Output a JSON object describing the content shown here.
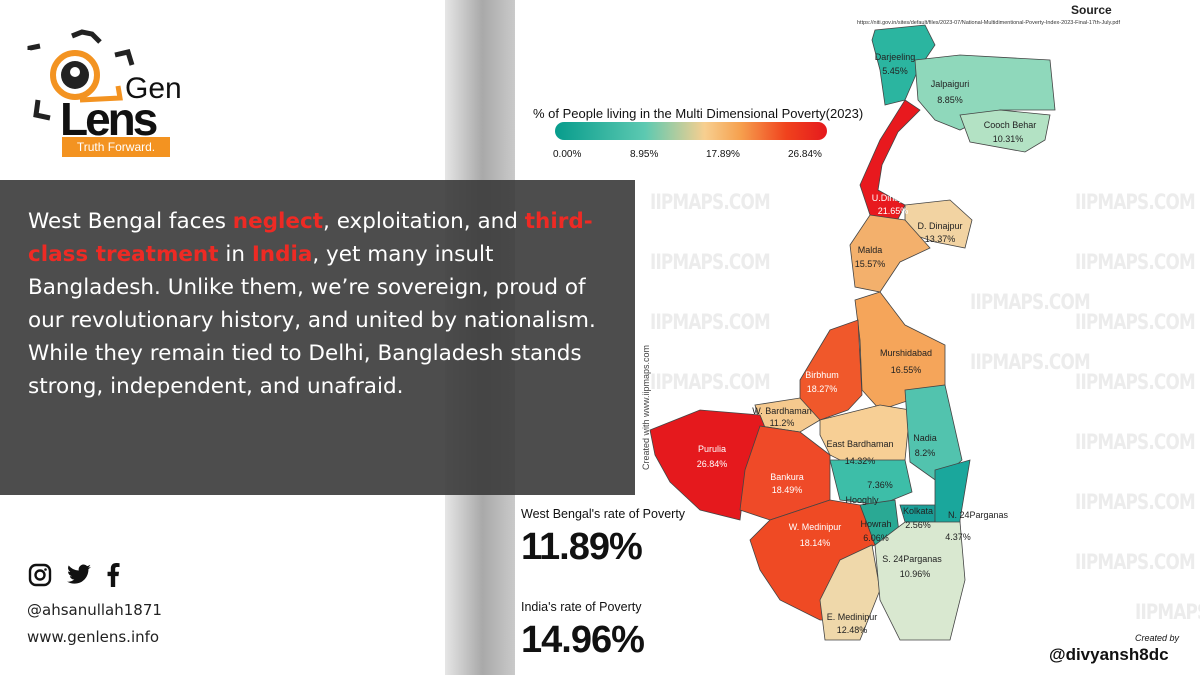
{
  "brand": {
    "logo_top": "Gen",
    "logo_bottom": "Lens",
    "tagline": "Truth Forward."
  },
  "post": {
    "parts": [
      {
        "text": "West Bengal faces ",
        "hl": false
      },
      {
        "text": "neglect",
        "hl": true
      },
      {
        "text": ", exploitation, and ",
        "hl": false
      },
      {
        "text": "third-class treatment",
        "hl": true
      },
      {
        "text": " in ",
        "hl": false
      },
      {
        "text": "India",
        "hl": true
      },
      {
        "text": ", yet many insult Bangladesh. Unlike them, we’re sovereign, proud of our revolutionary history, and united by nationalism. While they remain tied to Delhi, Bangladesh stands strong, independent, and unafraid.",
        "hl": false
      }
    ],
    "highlight_color": "#ee2a24"
  },
  "footer": {
    "icons": [
      "instagram-icon",
      "twitter-icon",
      "facebook-icon"
    ],
    "handle": "@ahsanullah1871",
    "website": "www.genlens.info"
  },
  "infographic": {
    "source_title": "Source",
    "source_url": "https://niti.gov.in/sites/default/files/2023-07/National-Multidimentional-Poverty-Index-2023-Final-17th-July.pdf",
    "legend_title": "% of People living in the Multi Dimensional Poverty(2023)",
    "legend_ticks": [
      "0.00%",
      "8.95%",
      "17.89%",
      "26.84%"
    ],
    "watermark": "IIPMAPS.COM",
    "vertical_credit": "Created with www.iipmaps.com",
    "wb_label": "West Bengal's rate of Poverty",
    "wb_value": "11.89%",
    "india_label": "India's rate of Poverty",
    "india_value": "14.96%",
    "created_by": "Created by",
    "author": "@divyansh8dc",
    "districts": [
      {
        "name": "Darjeeling",
        "value": "5.45%",
        "color": "#2bb5a0"
      },
      {
        "name": "Jalpaiguri",
        "value": "8.85%",
        "color": "#8fd8bb"
      },
      {
        "name": "Cooch Behar",
        "value": "10.31%",
        "color": "#b3e2c4"
      },
      {
        "name": "U.Dinajpur",
        "value": "21.65%",
        "color": "#e8191e"
      },
      {
        "name": "D. Dinajpur",
        "value": "13.37%",
        "color": "#f2d3a2"
      },
      {
        "name": "Malda",
        "value": "15.57%",
        "color": "#f3b06c"
      },
      {
        "name": "Murshidabad",
        "value": "16.55%",
        "color": "#f5a55a"
      },
      {
        "name": "Birbhum",
        "value": "18.27%",
        "color": "#f0582b"
      },
      {
        "name": "W. Bardhaman",
        "value": "11.2%",
        "color": "#f5c98e"
      },
      {
        "name": "East Bardhaman",
        "value": "14.32%",
        "color": "#f7cf95"
      },
      {
        "name": "Nadia",
        "value": "8.2%",
        "color": "#52c3ae"
      },
      {
        "name": "Purulia",
        "value": "26.84%",
        "color": "#e5191d"
      },
      {
        "name": "Bankura",
        "value": "18.49%",
        "color": "#ef4a28"
      },
      {
        "name": "Hooghly",
        "value": "7.36%",
        "color": "#3dbea8"
      },
      {
        "name": "Howrah",
        "value": "6.06%",
        "color": "#2aa994"
      },
      {
        "name": "Kolkata",
        "value": "2.56%",
        "color": "#1a9f98"
      },
      {
        "name": "N. 24Parganas",
        "value": "4.37%",
        "color": "#1aa79c"
      },
      {
        "name": "W. Medinipur",
        "value": "18.14%",
        "color": "#ef4a24"
      },
      {
        "name": "E. Medinipur",
        "value": "12.48%",
        "color": "#efd8aa"
      },
      {
        "name": "S. 24Parganas",
        "value": "10.96%",
        "color": "#d9e8d0"
      }
    ]
  }
}
